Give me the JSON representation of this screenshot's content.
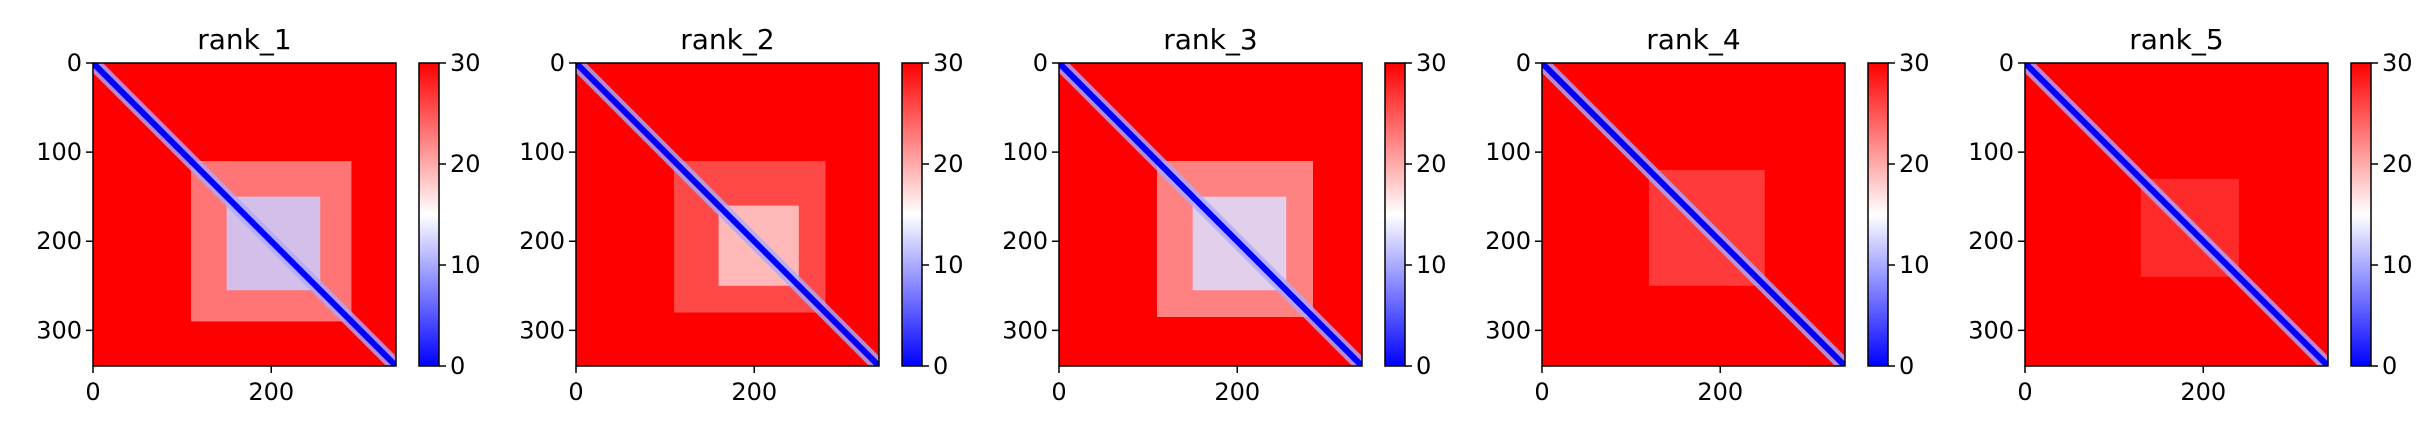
{
  "chart_data": [
    {
      "type": "heatmap",
      "title": "rank_1",
      "matrix_size": 340,
      "xticks": [
        0,
        200
      ],
      "yticks": [
        0,
        100,
        200,
        300
      ],
      "colorbar": {
        "ticks": [
          0,
          10,
          20,
          30
        ],
        "range": [
          0,
          30
        ],
        "colors": [
          "#0000ff",
          "#ffffff",
          "#ff0000"
        ]
      },
      "diagonal_value": 0,
      "background_value": 30,
      "blocks": [
        {
          "x": [
            110,
            290
          ],
          "y": [
            110,
            290
          ],
          "value": 22
        },
        {
          "x": [
            150,
            255
          ],
          "y": [
            150,
            255
          ],
          "value": 12
        }
      ]
    },
    {
      "type": "heatmap",
      "title": "rank_2",
      "matrix_size": 340,
      "xticks": [
        0,
        200
      ],
      "yticks": [
        0,
        100,
        200,
        300
      ],
      "colorbar": {
        "ticks": [
          0,
          10,
          20,
          30
        ],
        "range": [
          0,
          30
        ],
        "colors": [
          "#0000ff",
          "#ffffff",
          "#ff0000"
        ]
      },
      "diagonal_value": 0,
      "background_value": 30,
      "blocks": [
        {
          "x": [
            110,
            280
          ],
          "y": [
            110,
            280
          ],
          "value": 25
        },
        {
          "x": [
            160,
            250
          ],
          "y": [
            160,
            250
          ],
          "value": 18
        }
      ]
    },
    {
      "type": "heatmap",
      "title": "rank_3",
      "matrix_size": 340,
      "xticks": [
        0,
        200
      ],
      "yticks": [
        0,
        100,
        200,
        300
      ],
      "colorbar": {
        "ticks": [
          0,
          10,
          20,
          30
        ],
        "range": [
          0,
          30
        ],
        "colors": [
          "#0000ff",
          "#ffffff",
          "#ff0000"
        ]
      },
      "diagonal_value": 0,
      "background_value": 30,
      "blocks": [
        {
          "x": [
            110,
            285
          ],
          "y": [
            110,
            285
          ],
          "value": 21
        },
        {
          "x": [
            150,
            255
          ],
          "y": [
            150,
            255
          ],
          "value": 13
        }
      ]
    },
    {
      "type": "heatmap",
      "title": "rank_4",
      "matrix_size": 340,
      "xticks": [
        0,
        200
      ],
      "yticks": [
        0,
        100,
        200,
        300
      ],
      "colorbar": {
        "ticks": [
          0,
          10,
          20,
          30
        ],
        "range": [
          0,
          30
        ],
        "colors": [
          "#0000ff",
          "#ffffff",
          "#ff0000"
        ]
      },
      "diagonal_value": 0,
      "background_value": 30,
      "blocks": [
        {
          "x": [
            120,
            250
          ],
          "y": [
            120,
            250
          ],
          "value": 26
        }
      ]
    },
    {
      "type": "heatmap",
      "title": "rank_5",
      "matrix_size": 340,
      "xticks": [
        0,
        200
      ],
      "yticks": [
        0,
        100,
        200,
        300
      ],
      "colorbar": {
        "ticks": [
          0,
          10,
          20,
          30
        ],
        "range": [
          0,
          30
        ],
        "colors": [
          "#0000ff",
          "#ffffff",
          "#ff0000"
        ]
      },
      "diagonal_value": 0,
      "background_value": 30,
      "blocks": [
        {
          "x": [
            130,
            240
          ],
          "y": [
            130,
            240
          ],
          "value": 27
        }
      ]
    }
  ]
}
